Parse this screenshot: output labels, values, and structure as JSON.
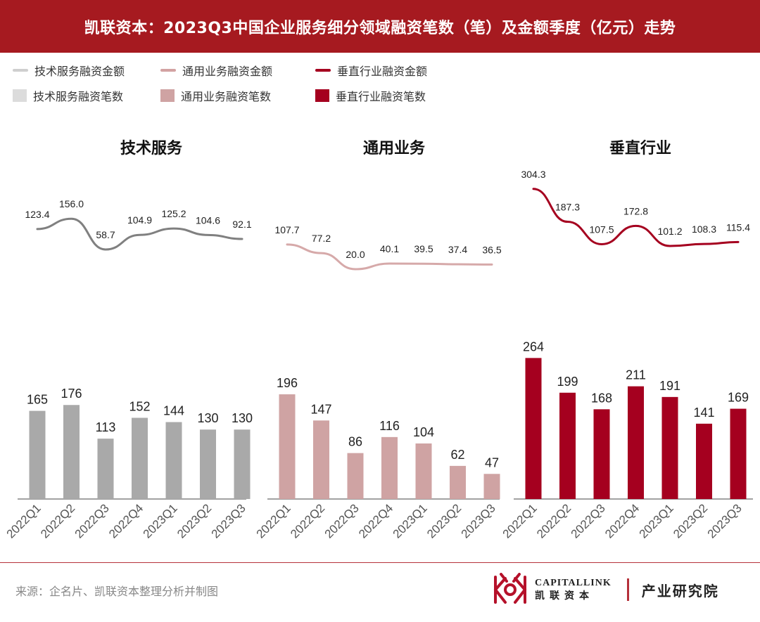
{
  "header": {
    "title": "凯联资本：2023Q3中国企业服务细分领域融资笔数（笔）及金额季度（亿元）走势"
  },
  "legend": [
    {
      "label": "技术服务融资金额",
      "kind": "line",
      "color": "#cfcfcf"
    },
    {
      "label": "通用业务融资金额",
      "kind": "line",
      "color": "#d3a2a2"
    },
    {
      "label": "垂直行业融资金额",
      "kind": "line",
      "color": "#a5001f"
    },
    {
      "label": "技术服务融资笔数",
      "kind": "box",
      "color": "#dcdcdc"
    },
    {
      "label": "通用业务融资笔数",
      "kind": "box",
      "color": "#cfa3a3"
    },
    {
      "label": "垂直行业融资笔数",
      "kind": "box",
      "color": "#a5001f"
    }
  ],
  "chart_data": [
    {
      "type": "bar",
      "title": "技术服务",
      "categories": [
        "2022Q1",
        "2022Q2",
        "2022Q3",
        "2022Q4",
        "2023Q1",
        "2023Q2",
        "2023Q3"
      ],
      "series": [
        {
          "name": "技术服务融资笔数",
          "values": [
            165,
            176,
            113,
            152,
            144,
            130,
            130
          ],
          "color": "#a9a9a9"
        },
        {
          "name": "技术服务融资金额",
          "values": [
            123.4,
            156.0,
            58.7,
            104.9,
            125.2,
            104.6,
            92.1
          ],
          "color": "#808080",
          "type": "line"
        }
      ],
      "panel_bg": "#a9a9a9"
    },
    {
      "type": "bar",
      "title": "通用业务",
      "categories": [
        "2022Q1",
        "2022Q2",
        "2022Q3",
        "2022Q4",
        "2023Q1",
        "2023Q2",
        "2023Q3"
      ],
      "series": [
        {
          "name": "通用业务融资笔数",
          "values": [
            196,
            147,
            86,
            116,
            104,
            62,
            47
          ],
          "color": "#cfa3a3"
        },
        {
          "name": "通用业务融资金额",
          "values": [
            107.7,
            77.2,
            20.0,
            40.1,
            39.5,
            37.4,
            36.5
          ],
          "color": "#d6a9a9",
          "type": "line"
        }
      ],
      "panel_bg": "#cfa3a3"
    },
    {
      "type": "bar",
      "title": "垂直行业",
      "categories": [
        "2022Q1",
        "2022Q2",
        "2022Q3",
        "2022Q4",
        "2023Q1",
        "2023Q2",
        "2023Q3"
      ],
      "series": [
        {
          "name": "垂直行业融资笔数",
          "values": [
            264,
            199,
            168,
            211,
            191,
            141,
            169
          ],
          "color": "#a5001f"
        },
        {
          "name": "垂直行业融资金额",
          "values": [
            304.3,
            187.3,
            107.5,
            172.8,
            101.2,
            108.3,
            115.4
          ],
          "color": "#a5001f",
          "type": "line"
        }
      ],
      "panel_bg": "#a5001f"
    }
  ],
  "footer": {
    "source": "来源：企名片、凯联资本整理分析并制图",
    "brand_en": "CAPITALLINK",
    "brand_cn": "凯联资本",
    "dept": "产业研究院"
  }
}
